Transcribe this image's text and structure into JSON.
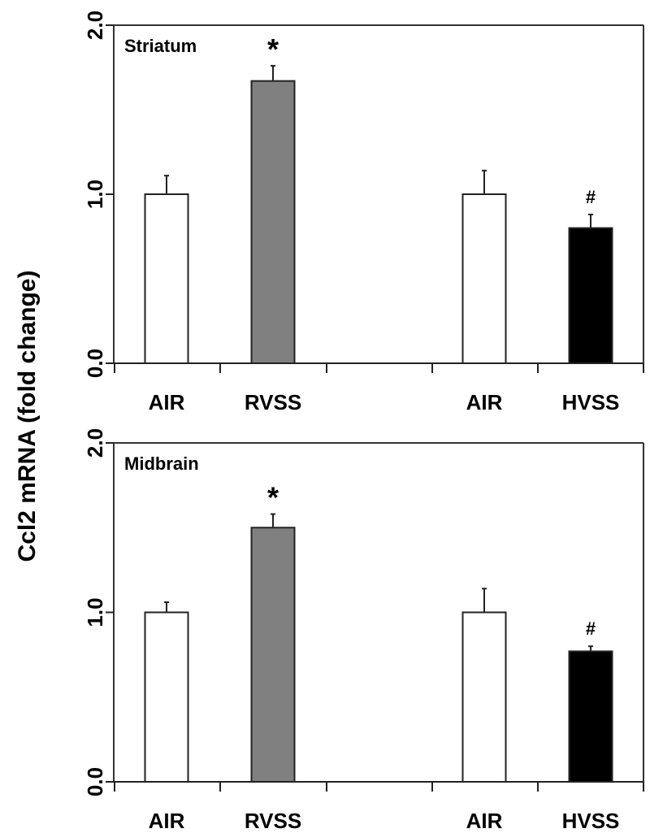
{
  "chart_data": [
    {
      "type": "bar",
      "title": "Striatum",
      "ylabel": "Ccl2 mRNA (fold change)",
      "xlabel": "",
      "ylim": [
        0,
        2.0
      ],
      "yticks": [
        "0.0",
        "1.0",
        "2.0"
      ],
      "ytick_values": [
        0,
        1,
        2
      ],
      "grid": false,
      "categories": [
        "AIR",
        "RVSS",
        "AIR",
        "HVSS"
      ],
      "values": [
        1.0,
        1.67,
        1.0,
        0.8
      ],
      "errors": [
        0.11,
        0.09,
        0.14,
        0.08
      ],
      "colors": [
        "#ffffff",
        "#808080",
        "#ffffff",
        "#000000"
      ],
      "annotations": [
        "",
        "*",
        "",
        "#"
      ]
    },
    {
      "type": "bar",
      "title": "Midbrain",
      "ylabel": "Ccl2 mRNA (fold change)",
      "xlabel": "",
      "ylim": [
        0,
        2.0
      ],
      "yticks": [
        "0.0",
        "1.0",
        "2.0"
      ],
      "ytick_values": [
        0,
        1,
        2
      ],
      "grid": false,
      "categories": [
        "AIR",
        "RVSS",
        "AIR",
        "HVSS"
      ],
      "values": [
        1.0,
        1.5,
        1.0,
        0.77
      ],
      "errors": [
        0.06,
        0.08,
        0.14,
        0.03
      ],
      "colors": [
        "#ffffff",
        "#808080",
        "#ffffff",
        "#000000"
      ],
      "annotations": [
        "",
        "*",
        "",
        "#"
      ]
    }
  ],
  "shared_ylabel": "Ccl2 mRNA (fold change)"
}
